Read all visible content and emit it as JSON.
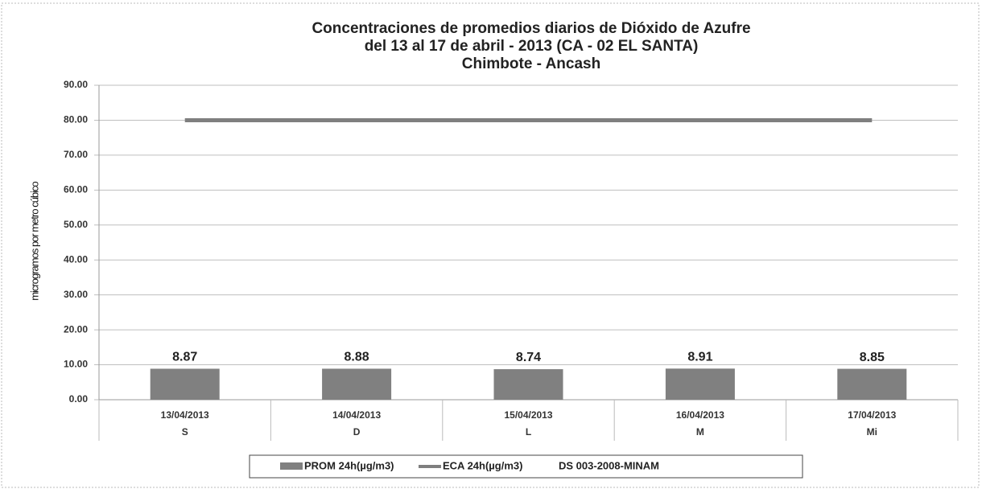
{
  "chart_data": {
    "type": "bar",
    "title": [
      "Concentraciones de promedios diarios de Dióxido de Azufre",
      "del 13 al 17 de abril - 2013 (CA - 02 EL SANTA)",
      "Chimbote - Ancash"
    ],
    "y_label": "microgramos por metro cúbico",
    "categories": [
      "13/04/2013",
      "14/04/2013",
      "15/04/2013",
      "16/04/2013",
      "17/04/2013"
    ],
    "day_labels": [
      "S",
      "D",
      "L",
      "M",
      "Mi"
    ],
    "series": [
      {
        "name": "PROM 24h(µg/m3)",
        "type": "bar",
        "color": "#808080",
        "values": [
          8.87,
          8.88,
          8.74,
          8.91,
          8.85
        ]
      },
      {
        "name": "ECA 24h(µg/m3)",
        "type": "line",
        "color": "#7f7f7f",
        "values": [
          80,
          80,
          80,
          80,
          80
        ]
      }
    ],
    "legend_note": "DS 003-2008-MINAM",
    "ylim": [
      0,
      90
    ],
    "yticks": [
      {
        "value": 0,
        "label": "0.00"
      },
      {
        "value": 10,
        "label": "10.00"
      },
      {
        "value": 20,
        "label": "20.00"
      },
      {
        "value": 30,
        "label": "30.00"
      },
      {
        "value": 40,
        "label": "40.00"
      },
      {
        "value": 50,
        "label": "50.00"
      },
      {
        "value": 60,
        "label": "60.00"
      },
      {
        "value": 70,
        "label": "70.00"
      },
      {
        "value": 80,
        "label": "80.00"
      },
      {
        "value": 90,
        "label": "90.00"
      }
    ],
    "grid": true
  }
}
